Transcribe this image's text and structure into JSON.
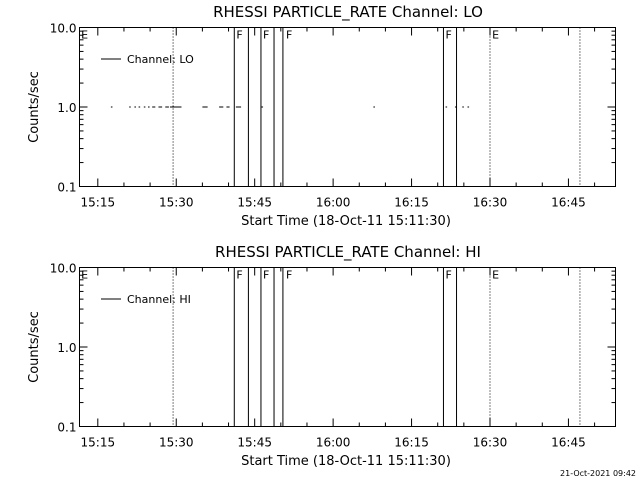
{
  "footer": {
    "timestamp": "21-Oct-2021 09:42"
  },
  "chart_data": [
    {
      "type": "line",
      "title": "RHESSI PARTICLE_RATE Channel: LO",
      "xlabel": "Start Time (18-Oct-11 15:11:30)",
      "ylabel": "Counts/sec",
      "xlim": [
        "15:11:30",
        "16:54:00"
      ],
      "ylim": [
        0.1,
        10.0
      ],
      "y_scale": "log",
      "grid": false,
      "legend_position": "top-left",
      "x_tick_labels": [
        "15:15",
        "15:30",
        "15:45",
        "16:00",
        "16:15",
        "16:30",
        "16:45"
      ],
      "y_tick_labels": [
        "10.0",
        "1.0",
        "0.1"
      ],
      "series": [
        {
          "name": "Channel: LO",
          "segments": [
            [
              "15:17:30",
              "15:17:48"
            ],
            [
              "15:21:00",
              "15:21:18"
            ],
            [
              "15:22:00",
              "15:22:18"
            ],
            [
              "15:22:48",
              "15:23:06"
            ],
            [
              "15:23:48",
              "15:24:06"
            ],
            [
              "15:24:36",
              "15:24:54"
            ],
            [
              "15:25:24",
              "15:26:00"
            ],
            [
              "15:26:36",
              "15:27:18"
            ],
            [
              "15:27:54",
              "15:28:36"
            ],
            [
              "15:28:48",
              "15:31:00"
            ],
            [
              "15:35:00",
              "15:36:00"
            ],
            [
              "15:38:12",
              "15:39:00"
            ],
            [
              "15:39:36",
              "15:40:12"
            ],
            [
              "15:41:24",
              "15:42:24"
            ],
            [
              "15:46:18",
              "15:46:36"
            ],
            [
              "16:07:42",
              "16:08:00"
            ],
            [
              "16:21:30",
              "16:21:48"
            ],
            [
              "16:23:18",
              "16:23:36"
            ],
            [
              "16:24:42",
              "16:25:00"
            ],
            [
              "16:25:42",
              "16:26:00"
            ]
          ],
          "value": 1.0
        }
      ],
      "solid_vlines": [
        "15:41:06",
        "15:43:48",
        "15:46:12",
        "15:48:42",
        "15:50:24",
        "16:21:06",
        "16:23:36"
      ],
      "dotted_vlines": [
        "15:29:24",
        "16:30:00",
        "16:47:12"
      ],
      "annotations": [
        {
          "text": "E",
          "at": "15:11:48"
        },
        {
          "text": "F",
          "at": "15:41:30"
        },
        {
          "text": "F",
          "at": "15:46:36"
        },
        {
          "text": "F",
          "at": "15:51:00"
        },
        {
          "text": "F",
          "at": "16:21:30"
        },
        {
          "text": "E",
          "at": "16:30:24"
        }
      ]
    },
    {
      "type": "line",
      "title": "RHESSI PARTICLE_RATE Channel: HI",
      "xlabel": "Start Time (18-Oct-11 15:11:30)",
      "ylabel": "Counts/sec",
      "xlim": [
        "15:11:30",
        "16:54:00"
      ],
      "ylim": [
        0.1,
        10.0
      ],
      "y_scale": "log",
      "grid": false,
      "legend_position": "top-left",
      "x_tick_labels": [
        "15:15",
        "15:30",
        "15:45",
        "16:00",
        "16:15",
        "16:30",
        "16:45"
      ],
      "y_tick_labels": [
        "10.0",
        "1.0",
        "0.1"
      ],
      "series": [
        {
          "name": "Channel: HI",
          "segments": [],
          "value": null
        }
      ],
      "solid_vlines": [
        "15:41:06",
        "15:43:48",
        "15:46:12",
        "15:48:42",
        "15:50:24",
        "16:21:06",
        "16:23:36"
      ],
      "dotted_vlines": [
        "15:29:24",
        "16:30:00",
        "16:47:12"
      ],
      "annotations": [
        {
          "text": "E",
          "at": "15:11:48"
        },
        {
          "text": "F",
          "at": "15:41:30"
        },
        {
          "text": "F",
          "at": "15:46:36"
        },
        {
          "text": "F",
          "at": "15:51:00"
        },
        {
          "text": "F",
          "at": "16:21:30"
        },
        {
          "text": "E",
          "at": "16:30:24"
        }
      ]
    }
  ]
}
